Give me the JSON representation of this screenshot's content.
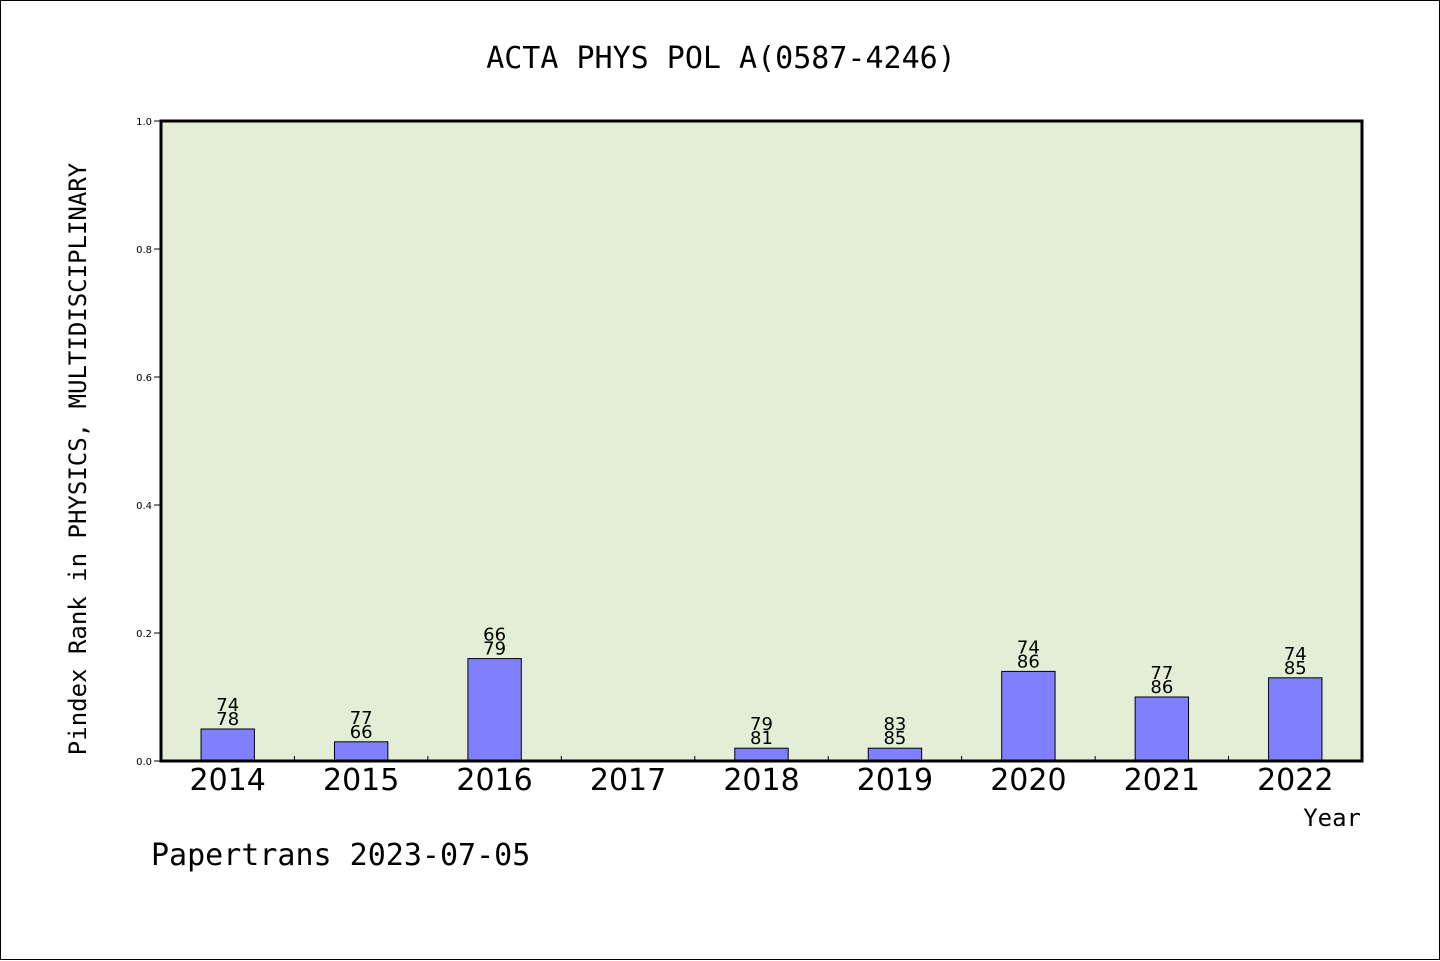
{
  "chart_data": {
    "type": "bar",
    "title": "ACTA PHYS POL A(0587-4246)",
    "xlabel": "Year",
    "ylabel": "Pindex Rank in PHYSICS, MULTIDISCIPLINARY",
    "ylim": [
      0,
      1.0
    ],
    "yticks": [
      "0.0",
      "0.2",
      "0.4",
      "0.6",
      "0.8",
      "1.0"
    ],
    "categories": [
      "2014",
      "2015",
      "2016",
      "2017",
      "2018",
      "2019",
      "2020",
      "2021",
      "2022"
    ],
    "values": [
      0.05,
      0.03,
      0.16,
      null,
      0.02,
      0.02,
      0.14,
      0.1,
      0.13
    ],
    "labels_top": [
      "74",
      "77",
      "66",
      "",
      "79",
      "83",
      "74",
      "77",
      "74"
    ],
    "labels_bottom": [
      "78",
      "66",
      "79",
      "",
      "81",
      "85",
      "86",
      "86",
      "85"
    ],
    "grid": false,
    "colors": {
      "plot_background": "#e2efd6",
      "bar_fill": "#8080ff",
      "bar_stroke": "#000000"
    }
  },
  "footer": "Papertrans 2023-07-05"
}
